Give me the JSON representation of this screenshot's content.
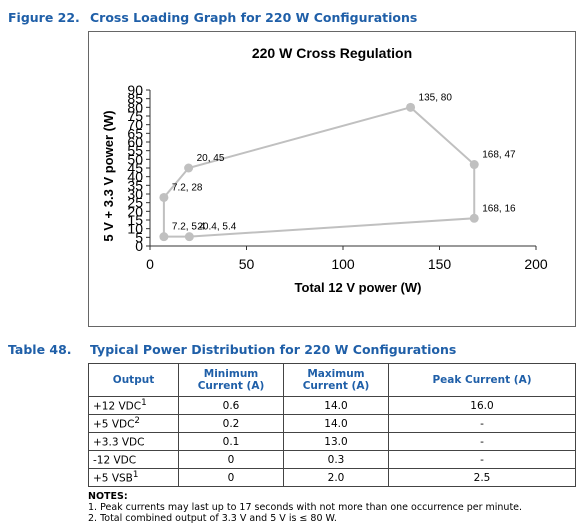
{
  "figure": {
    "number": "Figure 22.",
    "title": "Cross Loading Graph for 220 W Configurations"
  },
  "chart_data": {
    "type": "line",
    "title": "220 W Cross Regulation",
    "xlabel": "Total 12 V power (W)",
    "ylabel": "5 V + 3.3 V power (W)",
    "xlim": [
      0,
      200
    ],
    "ylim": [
      0,
      90
    ],
    "x_ticks": [
      0,
      50,
      100,
      150,
      200
    ],
    "y_ticks": [
      0,
      5,
      10,
      15,
      20,
      25,
      30,
      35,
      40,
      45,
      50,
      55,
      60,
      65,
      70,
      75,
      80,
      85,
      90
    ],
    "grid": "none",
    "color": "#c0c0c0",
    "points": [
      {
        "x": 7.2,
        "y": 5.4,
        "label": "7.2, 5.4"
      },
      {
        "x": 7.2,
        "y": 28,
        "label": "7.2, 28"
      },
      {
        "x": 20,
        "y": 45,
        "label": "20, 45"
      },
      {
        "x": 135,
        "y": 80,
        "label": "135, 80"
      },
      {
        "x": 168,
        "y": 47,
        "label": "168, 47"
      },
      {
        "x": 168,
        "y": 16,
        "label": "168, 16"
      },
      {
        "x": 20.4,
        "y": 5.4,
        "label": "20.4, 5.4"
      }
    ]
  },
  "table": {
    "number": "Table 48.",
    "title": "Typical Power Distribution for 220 W Configurations",
    "headers": [
      "Output",
      "Minimum Current (A)",
      "Maximum Current (A)",
      "Peak Current (A)"
    ],
    "rows": [
      {
        "output": "+12 VDC",
        "sup": "1",
        "min": "0.6",
        "max": "14.0",
        "peak": "16.0"
      },
      {
        "output": "+5 VDC",
        "sup": "2",
        "min": "0.2",
        "max": "14.0",
        "peak": "-"
      },
      {
        "output": "+3.3 VDC",
        "sup": "",
        "min": "0.1",
        "max": "13.0",
        "peak": "-"
      },
      {
        "output": "-12 VDC",
        "sup": "",
        "min": "0",
        "max": "0.3",
        "peak": "-"
      },
      {
        "output": "+5 VSB",
        "sup": "1",
        "min": "0",
        "max": "2.0",
        "peak": "2.5"
      }
    ]
  },
  "notes": {
    "heading": "NOTES:",
    "items": [
      "1.  Peak currents may last up to 17 seconds with not more than one occurrence per minute.",
      "2.  Total combined output of 3.3 V and 5 V is ≤ 80 W."
    ]
  }
}
